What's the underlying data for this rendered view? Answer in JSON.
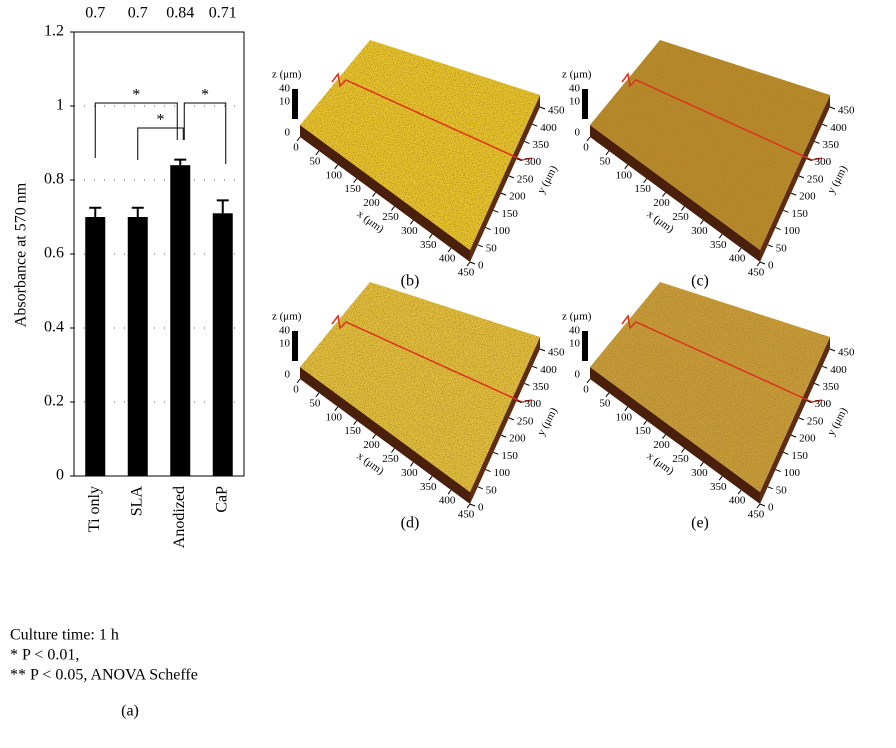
{
  "chart_data": {
    "type": "bar",
    "ylabel": "Absorbance at 570 nm",
    "categories": [
      "Ti only",
      "SLA",
      "Anodized",
      "CaP"
    ],
    "values": [
      0.7,
      0.7,
      0.84,
      0.71
    ],
    "errors": [
      0.025,
      0.025,
      0.015,
      0.035
    ],
    "color": "#000000",
    "ylim": [
      0,
      1.2
    ],
    "yticks": [
      0,
      0.2,
      0.4,
      0.6,
      0.8,
      1,
      1.2
    ],
    "grid": true,
    "annotations": [
      "*",
      "*",
      "*"
    ],
    "footnotes": [
      "Culture time: 1 h",
      "* P < 0.01,",
      "** P < 0.05, ANOVA Scheffe"
    ],
    "panel_label": "(a)"
  },
  "surface_axes": {
    "z_label": "z (μm)",
    "z_ticks": [
      40,
      10,
      0
    ],
    "x_label": "x (μm)",
    "x_ticks": [
      0,
      50,
      100,
      150,
      200,
      250,
      300,
      350,
      400,
      450
    ],
    "y_label": "y (μm)",
    "y_ticks": [
      0,
      50,
      100,
      150,
      200,
      250,
      300,
      350,
      400,
      450
    ]
  },
  "surface_panels": [
    {
      "label": "(b)",
      "color": "#e9c52a"
    },
    {
      "label": "(c)",
      "color": "#b98a2a"
    },
    {
      "label": "(d)",
      "color": "#e2bf3c"
    },
    {
      "label": "(e)",
      "color": "#c99c3a"
    }
  ]
}
